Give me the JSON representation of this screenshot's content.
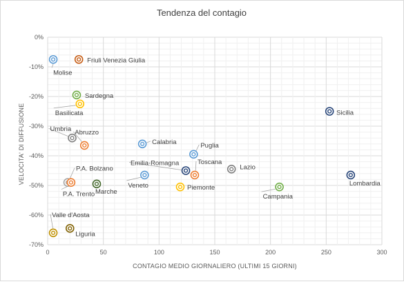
{
  "chart_data": {
    "type": "scatter",
    "title": "Tendenza del contagio",
    "xlabel": "CONTAGIO MEDIO GIORNALIERO (ULTIMI 15 GIORNI)",
    "ylabel": "VELOCITA' DI DIFFUSIONE",
    "xlim": [
      0,
      300
    ],
    "ylim": [
      -70,
      0
    ],
    "x_ticks": [
      "0",
      "50",
      "100",
      "150",
      "200",
      "250",
      "300"
    ],
    "y_ticks": [
      "0%",
      "-10%",
      "-20%",
      "-30%",
      "-40%",
      "-50%",
      "-60%",
      "-70%"
    ],
    "grid": true,
    "legend": "none",
    "points": [
      {
        "label": "Molise",
        "x": 5,
        "y": -7.5,
        "color": "#5b9bd5"
      },
      {
        "label": "Friuli Venezia Giulia",
        "x": 28,
        "y": -7.5,
        "color": "#c55a11"
      },
      {
        "label": "Sardegna",
        "x": 26,
        "y": -19.5,
        "color": "#70ad47"
      },
      {
        "label": "Basilicata",
        "x": 29,
        "y": -22.5,
        "color": "#ffc000"
      },
      {
        "label": "Umbria",
        "x": 22,
        "y": -34,
        "color": "#7f7f7f"
      },
      {
        "label": "Abruzzo",
        "x": 33,
        "y": -36.5,
        "color": "#ed7d31"
      },
      {
        "label": "Calabria",
        "x": 85,
        "y": -36,
        "color": "#5b9bd5"
      },
      {
        "label": "Puglia",
        "x": 131,
        "y": -39.5,
        "color": "#5b9bd5"
      },
      {
        "label": "Emilia-Romagna",
        "x": 124,
        "y": -45,
        "color": "#264478"
      },
      {
        "label": "Toscana",
        "x": 132,
        "y": -46.5,
        "color": "#ed7d31"
      },
      {
        "label": "Lazio",
        "x": 165,
        "y": -44.5,
        "color": "#7f7f7f"
      },
      {
        "label": "Veneto",
        "x": 87,
        "y": -46.5,
        "color": "#5b9bd5"
      },
      {
        "label": "Piemonte",
        "x": 119,
        "y": -50.5,
        "color": "#ffc000"
      },
      {
        "label": "P.A. Bolzano",
        "x": 18,
        "y": -49,
        "color": "#a5a5a5"
      },
      {
        "label": "P.A. Trento",
        "x": 21,
        "y": -49,
        "color": "#ed7d31"
      },
      {
        "label": "Marche",
        "x": 44,
        "y": -49.5,
        "color": "#43682b"
      },
      {
        "label": "Campania",
        "x": 208,
        "y": -50.5,
        "color": "#70ad47"
      },
      {
        "label": "Sicilia",
        "x": 253,
        "y": -25,
        "color": "#264478"
      },
      {
        "label": "Lombardia",
        "x": 272,
        "y": -46.5,
        "color": "#264478"
      },
      {
        "label": "Valle d'Aosta",
        "x": 5,
        "y": -66,
        "color": "#bf9000"
      },
      {
        "label": "Liguria",
        "x": 20,
        "y": -64.5,
        "color": "#806000"
      }
    ]
  }
}
